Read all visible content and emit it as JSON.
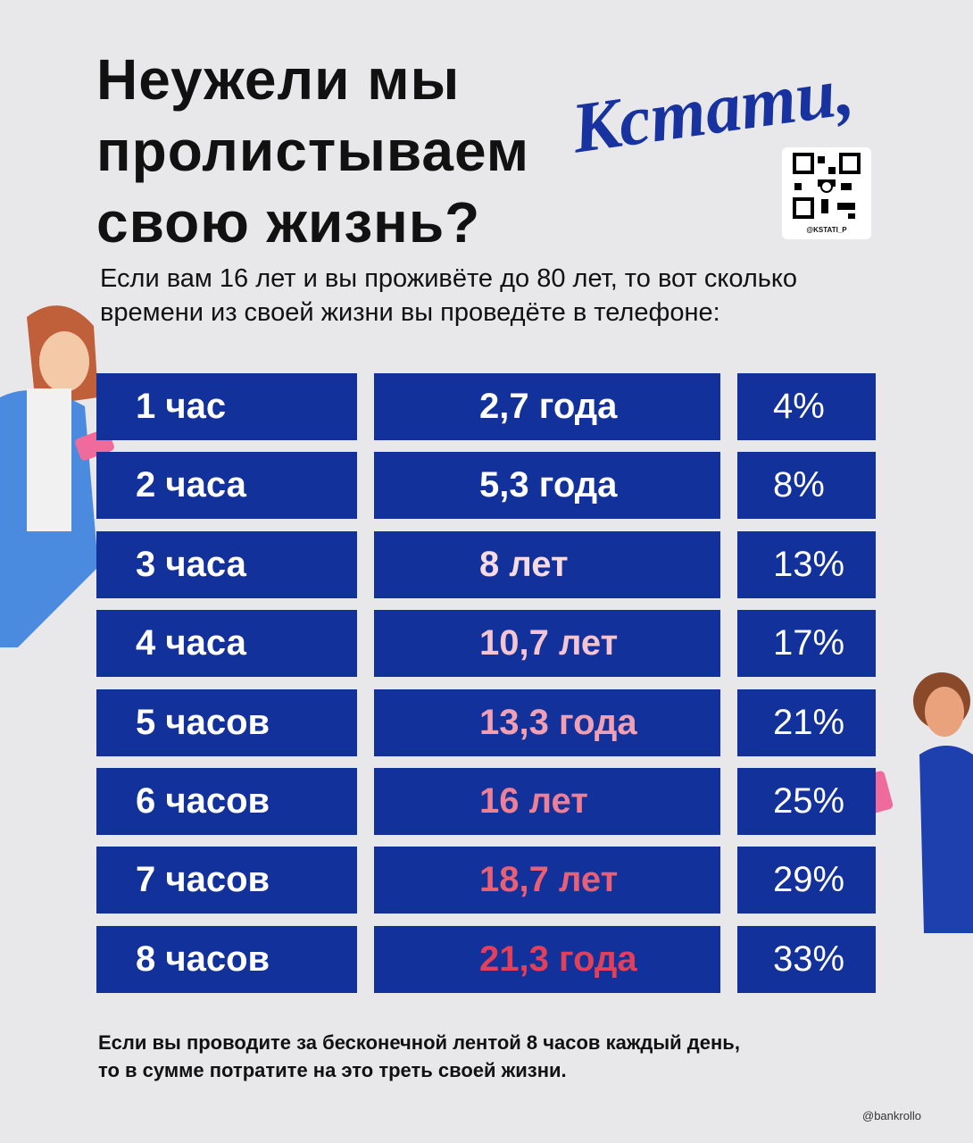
{
  "header": {
    "title": [
      "Неужели мы",
      "пролистываем",
      "свою жизнь?"
    ],
    "logo": "Кстати,",
    "qr_caption": "@KSTATI_P"
  },
  "subtitle": [
    "Если вам 16 лет и вы проживёте до 80 лет, то вот сколько",
    "времени из своей жизни вы проведёте в телефоне:"
  ],
  "table": {
    "rows": [
      [
        "1 час",
        "2,7 года",
        "4%"
      ],
      [
        "2 часа",
        "5,3 года",
        "8%"
      ],
      [
        "3 часа",
        "8 лет",
        "13%"
      ],
      [
        "4 часа",
        "10,7 лет",
        "17%"
      ],
      [
        "5 часов",
        "13,3 года",
        "21%"
      ],
      [
        "6 часов",
        "16 лет",
        "25%"
      ],
      [
        "7 часов",
        "18,7 лет",
        "29%"
      ],
      [
        "8 часов",
        "21,3 года",
        "33%"
      ]
    ]
  },
  "footer": [
    "Если вы проводите за бесконечной лентой 8 часов каждый день,",
    "то в сумме потратите на это треть своей жизни."
  ],
  "credit": "@bankrollo"
}
